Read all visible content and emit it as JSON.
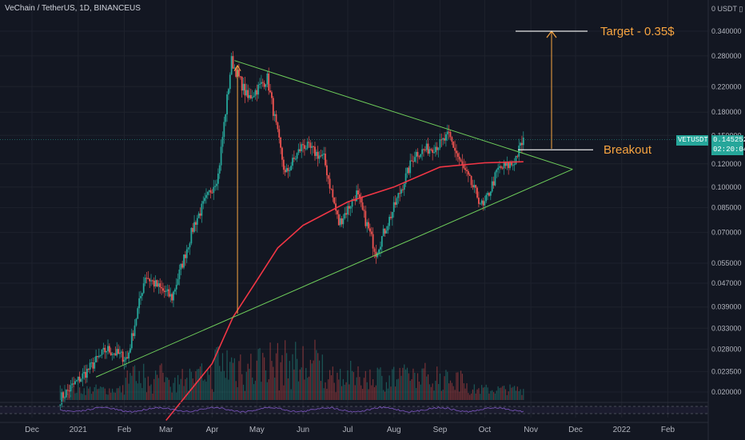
{
  "header": {
    "symbol_line": "VeChain / TetherUS, 1D, BINANCEUS"
  },
  "price_scale": {
    "currency": "0 USDT ▯",
    "labels": [
      "0.340000",
      "0.280000",
      "0.220000",
      "0.180000",
      "0.150000",
      "0.120000",
      "0.100000",
      "0.085000",
      "0.070000",
      "0.055000",
      "0.047000",
      "0.039000",
      "0.033000",
      "0.028000",
      "0.023500",
      "0.020000"
    ]
  },
  "last_price": {
    "symbol": "VETUSDT",
    "price": "0.145252",
    "countdown": "02:20:04",
    "color": "#26a69a"
  },
  "time_axis": {
    "labels": [
      "Dec",
      "2021",
      "Feb",
      "Mar",
      "Apr",
      "May",
      "Jun",
      "Jul",
      "Aug",
      "Sep",
      "Oct",
      "Nov",
      "Dec",
      "2022",
      "Feb"
    ]
  },
  "annotations": {
    "target_label": "Target - 0.35$",
    "breakout_label": "Breakout",
    "annotation_color": "#f7a440"
  },
  "chart_data": {
    "type": "candlestick",
    "title": "VeChain / TetherUS, 1D, BINANCEUS",
    "y_scale": "log",
    "ylim": [
      0.0185,
      0.42
    ],
    "colors": {
      "up": "#26a69a",
      "down": "#ef5350",
      "moving_average": "#f23645",
      "trendline": "#6fcf5b",
      "rsi": "#7e57c2"
    },
    "close_path": [
      [
        "2020-12-20",
        0.019
      ],
      [
        "2021-01-05",
        0.023
      ],
      [
        "2021-01-20",
        0.028
      ],
      [
        "2021-02-03",
        0.026
      ],
      [
        "2021-02-15",
        0.05
      ],
      [
        "2021-02-25",
        0.045
      ],
      [
        "2021-03-05",
        0.042
      ],
      [
        "2021-03-20",
        0.075
      ],
      [
        "2021-04-05",
        0.11
      ],
      [
        "2021-04-14",
        0.27
      ],
      [
        "2021-04-25",
        0.2
      ],
      [
        "2021-05-08",
        0.235
      ],
      [
        "2021-05-20",
        0.11
      ],
      [
        "2021-06-01",
        0.14
      ],
      [
        "2021-06-15",
        0.125
      ],
      [
        "2021-06-25",
        0.075
      ],
      [
        "2021-07-07",
        0.095
      ],
      [
        "2021-07-20",
        0.06
      ],
      [
        "2021-08-01",
        0.085
      ],
      [
        "2021-08-15",
        0.13
      ],
      [
        "2021-09-01",
        0.14
      ],
      [
        "2021-09-07",
        0.15
      ],
      [
        "2021-09-15",
        0.12
      ],
      [
        "2021-09-30",
        0.085
      ],
      [
        "2021-10-10",
        0.115
      ],
      [
        "2021-10-20",
        0.12
      ],
      [
        "2021-10-27",
        0.145
      ]
    ],
    "moving_average": [
      [
        "2021-03-01",
        0.016
      ],
      [
        "2021-04-01",
        0.025
      ],
      [
        "2021-04-15",
        0.036
      ],
      [
        "2021-05-01",
        0.048
      ],
      [
        "2021-05-15",
        0.062
      ],
      [
        "2021-06-01",
        0.074
      ],
      [
        "2021-07-01",
        0.089
      ],
      [
        "2021-08-01",
        0.1
      ],
      [
        "2021-09-01",
        0.117
      ],
      [
        "2021-10-01",
        0.121
      ],
      [
        "2021-10-27",
        0.122
      ]
    ],
    "trendlines": [
      {
        "from": [
          "2021-01-13",
          0.0225
        ],
        "to": [
          "2021-11-29",
          0.115
        ]
      },
      {
        "from": [
          "2021-04-16",
          0.27
        ],
        "to": [
          "2021-11-29",
          0.115
        ]
      }
    ]
  }
}
